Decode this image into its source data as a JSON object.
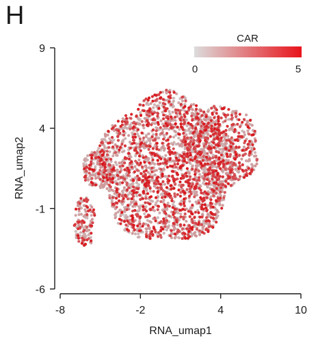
{
  "panel_label": "H",
  "chart_data": {
    "type": "scatter",
    "title": "",
    "xlabel": "RNA_umap1",
    "ylabel": "RNA_umap2",
    "xlim": [
      -8,
      10
    ],
    "ylim": [
      -6,
      9
    ],
    "x_ticks": [
      "-8",
      "-2",
      "4",
      "10"
    ],
    "y_ticks": [
      "-6",
      "-1",
      "4",
      "9"
    ],
    "grid": false,
    "color_legend": {
      "title": "CAR",
      "min_label": "0",
      "max_label": "5",
      "range": [
        0,
        5
      ],
      "low_color": "#dcdcdc",
      "high_color": "#e8141b",
      "placement": "top-right"
    },
    "point_color_default": "#c8a6a6",
    "description_regions": [
      {
        "cx": 0.0,
        "cy": 1.5,
        "rx": 5.0,
        "ry": 4.6,
        "weight": 0.72
      },
      {
        "cx": 4.2,
        "cy": 2.8,
        "rx": 2.6,
        "ry": 2.6,
        "weight": 0.18
      },
      {
        "cx": -6.2,
        "cy": -1.8,
        "rx": 0.8,
        "ry": 1.6,
        "weight": 0.04
      },
      {
        "cx": -5.2,
        "cy": 1.5,
        "rx": 1.1,
        "ry": 1.2,
        "weight": 0.06
      }
    ],
    "n_points": 3200,
    "expression_hotspot": {
      "x": 0.8,
      "y": 0.5,
      "rx": 2.3,
      "ry": 2.3
    }
  }
}
